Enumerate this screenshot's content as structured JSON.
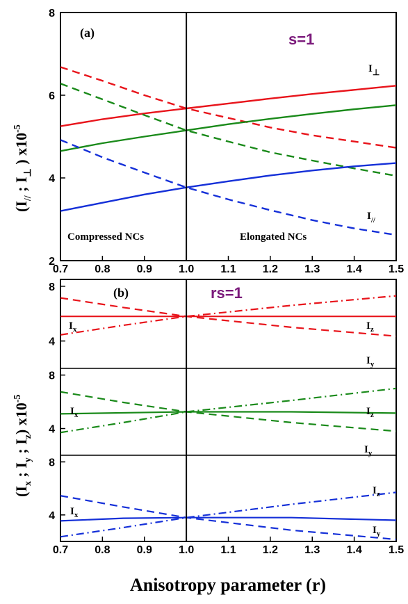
{
  "chart_data": [
    {
      "type": "line",
      "panel_label": "(a)",
      "annotation": "s=1",
      "region_labels": [
        "Compressed NCs",
        "Elongated NCs"
      ],
      "ylabel": {
        "main": "(I",
        "sub1": "//",
        "sep": " ; I",
        "sub2": "⊥",
        "tail": " ) x10",
        "sup": "-5"
      },
      "xlim": [
        0.7,
        1.5
      ],
      "ylim": [
        2,
        8
      ],
      "xticks": [
        0.7,
        0.8,
        0.9,
        1.0,
        1.1,
        1.2,
        1.3,
        1.4,
        1.5
      ],
      "xtick_labels": [
        "0.7",
        "0.8",
        "0.9",
        "1.0",
        "1.1",
        "1.2",
        "1.3",
        "1.4",
        "1.5"
      ],
      "yticks": [
        2,
        4,
        6,
        8
      ],
      "ytick_labels": [
        "2",
        "4",
        "6",
        "8"
      ],
      "vline_x": 1.0,
      "curve_labels": [
        {
          "main": "I",
          "sub": "⊥"
        },
        {
          "main": "I",
          "sub": "//"
        }
      ],
      "series": [
        {
          "color": "#e8141b",
          "dash": "solid",
          "x": [
            0.7,
            0.8,
            0.9,
            1.0,
            1.1,
            1.2,
            1.3,
            1.4,
            1.5
          ],
          "y": [
            5.25,
            5.42,
            5.56,
            5.68,
            5.8,
            5.92,
            6.03,
            6.13,
            6.23
          ]
        },
        {
          "color": "#e8141b",
          "dash": "dashed",
          "x": [
            0.7,
            0.8,
            0.9,
            1.0,
            1.1,
            1.2,
            1.3,
            1.4,
            1.5
          ],
          "y": [
            6.68,
            6.35,
            6.0,
            5.68,
            5.45,
            5.22,
            5.03,
            4.88,
            4.73
          ]
        },
        {
          "color": "#1a8a1a",
          "dash": "solid",
          "x": [
            0.7,
            0.8,
            0.9,
            1.0,
            1.1,
            1.2,
            1.3,
            1.4,
            1.5
          ],
          "y": [
            4.65,
            4.84,
            5.0,
            5.15,
            5.3,
            5.43,
            5.55,
            5.66,
            5.76
          ]
        },
        {
          "color": "#1a8a1a",
          "dash": "dashed",
          "x": [
            0.7,
            0.8,
            0.9,
            1.0,
            1.1,
            1.2,
            1.3,
            1.4,
            1.5
          ],
          "y": [
            6.28,
            5.9,
            5.52,
            5.15,
            4.88,
            4.62,
            4.42,
            4.23,
            4.05
          ]
        },
        {
          "color": "#1530d8",
          "dash": "solid",
          "x": [
            0.7,
            0.8,
            0.9,
            1.0,
            1.1,
            1.2,
            1.3,
            1.4,
            1.5
          ],
          "y": [
            3.2,
            3.4,
            3.6,
            3.77,
            3.92,
            4.06,
            4.18,
            4.28,
            4.36
          ]
        },
        {
          "color": "#1530d8",
          "dash": "dashed",
          "x": [
            0.7,
            0.8,
            0.9,
            1.0,
            1.1,
            1.2,
            1.3,
            1.4,
            1.5
          ],
          "y": [
            4.92,
            4.5,
            4.13,
            3.77,
            3.48,
            3.22,
            2.98,
            2.78,
            2.62
          ]
        }
      ]
    },
    {
      "type": "line",
      "panel_label": "(b)",
      "annotation": "rs=1",
      "ylabel": {
        "main": "(I",
        "sub1": "x",
        "sep1": " ; I",
        "sub2": "y",
        "sep2": " ; I",
        "sub3": "z",
        "tail": ") x10",
        "sup": "-5"
      },
      "xlim": [
        0.7,
        1.5
      ],
      "xticks": [
        0.7,
        0.8,
        0.9,
        1.0,
        1.1,
        1.2,
        1.3,
        1.4,
        1.5
      ],
      "xtick_labels": [
        "0.7",
        "0.8",
        "0.9",
        "1.0",
        "1.1",
        "1.2",
        "1.3",
        "1.4",
        "1.5"
      ],
      "xlabel": "Anisotropy parameter (r)",
      "vline_x": 1.0,
      "subpanels": [
        {
          "ylim": [
            2,
            8.5
          ],
          "yticks": [
            4,
            8
          ],
          "ytick_labels": [
            "4",
            "8"
          ],
          "labels": {
            "x": "x",
            "y": "y",
            "z": "z"
          },
          "series": [
            {
              "name": "I_x",
              "color": "#e8141b",
              "dash": "solid",
              "x": [
                0.7,
                1.0,
                1.5
              ],
              "y": [
                5.8,
                5.8,
                5.8
              ]
            },
            {
              "name": "I_x dashed",
              "color": "#e8141b",
              "dash": "dashed",
              "x": [
                0.7,
                0.85,
                1.0,
                1.25,
                1.5
              ],
              "y": [
                7.15,
                6.45,
                5.8,
                5.0,
                4.35
              ]
            },
            {
              "name": "I_z",
              "color": "#e8141b",
              "dash": "dashdot",
              "x": [
                0.7,
                0.85,
                1.0,
                1.25,
                1.5
              ],
              "y": [
                4.45,
                5.15,
                5.8,
                6.6,
                7.3
              ]
            }
          ]
        },
        {
          "ylim": [
            2,
            8.5
          ],
          "yticks": [
            4,
            8
          ],
          "ytick_labels": [
            "4",
            "8"
          ],
          "labels": {
            "x": "x",
            "y": "y",
            "z": "z"
          },
          "series": [
            {
              "color": "#1a8a1a",
              "dash": "solid",
              "x": [
                0.7,
                1.0,
                1.25,
                1.5
              ],
              "y": [
                5.1,
                5.25,
                5.25,
                5.15
              ]
            },
            {
              "color": "#1a8a1a",
              "dash": "dashed",
              "x": [
                0.7,
                0.85,
                1.0,
                1.25,
                1.5
              ],
              "y": [
                6.75,
                5.95,
                5.25,
                4.45,
                3.8
              ]
            },
            {
              "color": "#1a8a1a",
              "dash": "dashdot",
              "x": [
                0.7,
                0.85,
                1.0,
                1.25,
                1.5
              ],
              "y": [
                3.7,
                4.45,
                5.25,
                6.1,
                7.0
              ]
            }
          ]
        },
        {
          "ylim": [
            2,
            8.5
          ],
          "yticks": [
            4,
            8
          ],
          "ytick_labels": [
            "4",
            "8"
          ],
          "labels": {
            "x": "x",
            "y": "y",
            "z": "z"
          },
          "series": [
            {
              "color": "#1530d8",
              "dash": "solid",
              "x": [
                0.7,
                0.85,
                1.0,
                1.25,
                1.5
              ],
              "y": [
                3.55,
                3.75,
                3.8,
                3.8,
                3.6
              ]
            },
            {
              "color": "#1530d8",
              "dash": "dashed",
              "x": [
                0.7,
                0.85,
                1.0,
                1.25,
                1.5
              ],
              "y": [
                5.45,
                4.6,
                3.8,
                2.85,
                2.15
              ]
            },
            {
              "color": "#1530d8",
              "dash": "dashdot",
              "x": [
                0.7,
                0.85,
                1.0,
                1.25,
                1.5
              ],
              "y": [
                2.35,
                3.05,
                3.8,
                4.8,
                5.7
              ]
            }
          ]
        }
      ]
    }
  ]
}
